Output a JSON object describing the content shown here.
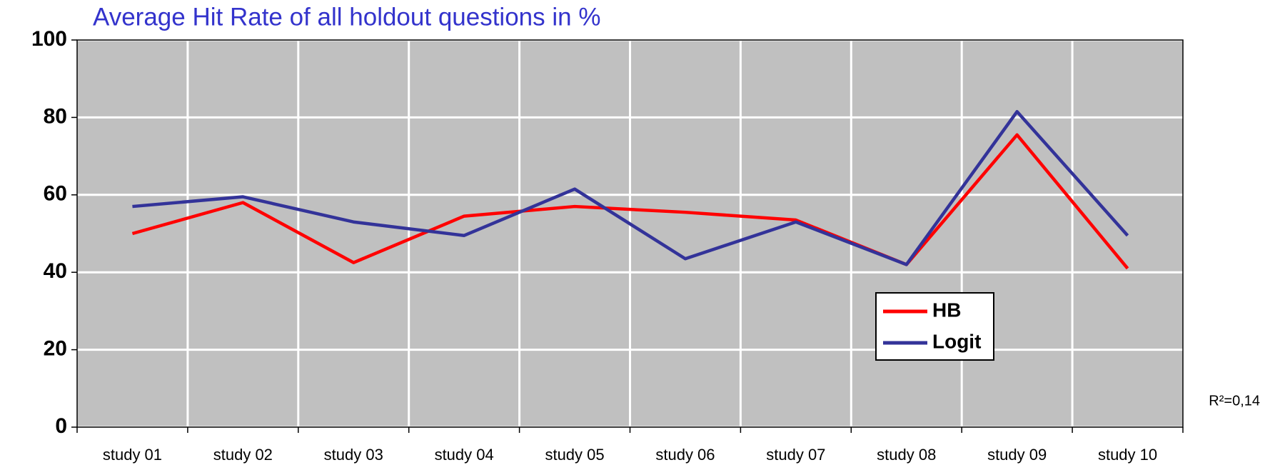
{
  "chart_data": {
    "type": "line",
    "title": "Average Hit Rate of all holdout questions in %",
    "annotation": "R²=0,14",
    "categories": [
      "study 01",
      "study 02",
      "study 03",
      "study 04",
      "study 05",
      "study 06",
      "study 07",
      "study 08",
      "study 09",
      "study 10"
    ],
    "series": [
      {
        "name": "HB",
        "color": "#ff0000",
        "values": [
          50,
          58,
          42.5,
          54.5,
          57,
          55.5,
          53.5,
          42,
          75.5,
          41
        ]
      },
      {
        "name": "Logit",
        "color": "#333399",
        "values": [
          57,
          59.5,
          53,
          49.5,
          61.5,
          43.5,
          53,
          42,
          81.5,
          49.5
        ]
      }
    ],
    "ylim": [
      0,
      100
    ],
    "yticks": [
      0,
      20,
      40,
      60,
      80,
      100
    ],
    "grid": true,
    "legend": "lower right"
  }
}
